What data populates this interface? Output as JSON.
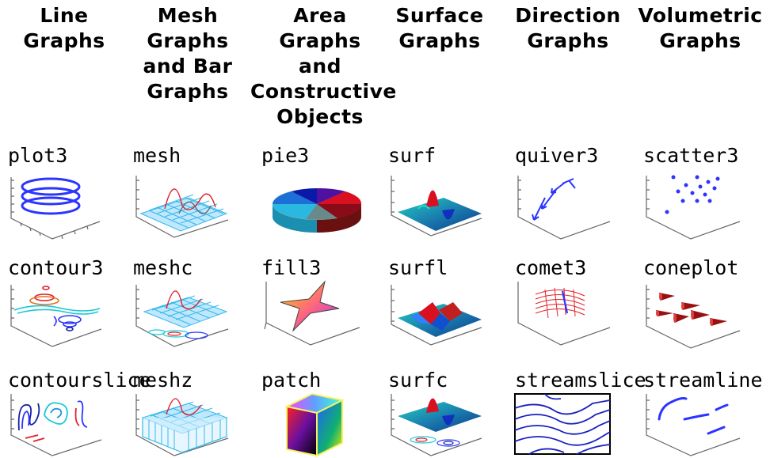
{
  "headers": [
    [
      "Line",
      "Graphs"
    ],
    [
      "Mesh",
      "Graphs",
      "and Bar",
      "Graphs"
    ],
    [
      "Area",
      "Graphs",
      "and",
      "Constructive",
      "Objects"
    ],
    [
      "Surface",
      "Graphs"
    ],
    [
      "Direction",
      "Graphs"
    ],
    [
      "Volumetric",
      "Graphs"
    ]
  ],
  "rows": [
    [
      "plot3",
      "mesh",
      "pie3",
      "surf",
      "quiver3",
      "scatter3"
    ],
    [
      "contour3",
      "meshc",
      "fill3",
      "surfl",
      "comet3",
      "coneplot"
    ],
    [
      "contourslice",
      "meshz",
      "patch",
      "surfc",
      "streamslice",
      "streamline"
    ]
  ],
  "colors": {
    "line_blue": "#2b35ff",
    "contour_cyan": "#17c9d6",
    "contour_red": "#e0232a",
    "mesh_cyan": "#35b8e8",
    "surface_teal": "#1b9fb0",
    "cone_red": "#9a1010"
  }
}
